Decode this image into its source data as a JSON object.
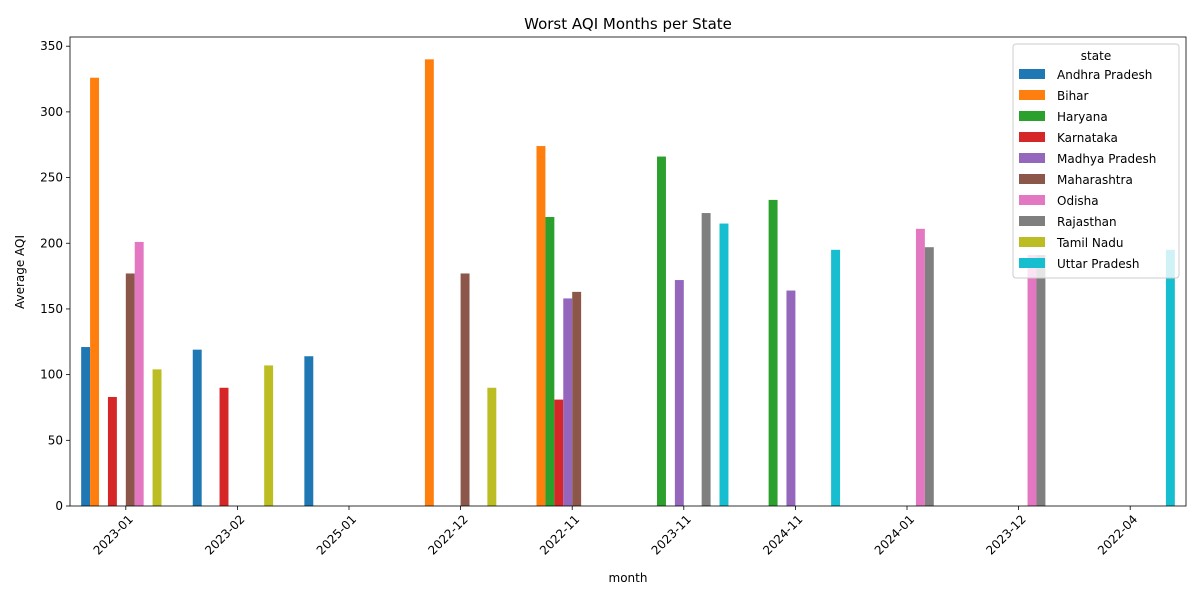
{
  "chart_data": {
    "type": "bar",
    "title": "Worst AQI Months per State",
    "xlabel": "month",
    "ylabel": "Average AQI",
    "ylim": [
      0,
      357
    ],
    "yticks": [
      0,
      50,
      100,
      150,
      200,
      250,
      300,
      350
    ],
    "grid": false,
    "legend_title": "state",
    "legend_placement": "top-right",
    "categories": [
      "2023-01",
      "2023-02",
      "2025-01",
      "2022-12",
      "2022-11",
      "2023-11",
      "2024-11",
      "2024-01",
      "2023-12",
      "2022-04"
    ],
    "series": [
      {
        "name": "Andhra Pradesh",
        "color": "#1f77b4",
        "values": [
          121,
          119,
          114,
          null,
          null,
          null,
          null,
          null,
          null,
          null
        ]
      },
      {
        "name": "Bihar",
        "color": "#ff7f0e",
        "values": [
          326,
          null,
          null,
          340,
          274,
          null,
          null,
          null,
          null,
          null
        ]
      },
      {
        "name": "Haryana",
        "color": "#2ca02c",
        "values": [
          null,
          null,
          null,
          null,
          220,
          266,
          233,
          null,
          null,
          null
        ]
      },
      {
        "name": "Karnataka",
        "color": "#d62728",
        "values": [
          83,
          90,
          null,
          null,
          81,
          null,
          null,
          null,
          null,
          null
        ]
      },
      {
        "name": "Madhya Pradesh",
        "color": "#9467bd",
        "values": [
          null,
          null,
          null,
          null,
          158,
          172,
          164,
          null,
          null,
          null
        ]
      },
      {
        "name": "Maharashtra",
        "color": "#8c564b",
        "values": [
          177,
          null,
          null,
          177,
          163,
          null,
          null,
          null,
          null,
          null
        ]
      },
      {
        "name": "Odisha",
        "color": "#e377c2",
        "values": [
          201,
          null,
          null,
          null,
          null,
          null,
          null,
          211,
          191,
          null
        ]
      },
      {
        "name": "Rajasthan",
        "color": "#7f7f7f",
        "values": [
          null,
          null,
          null,
          null,
          null,
          223,
          null,
          197,
          191,
          null
        ]
      },
      {
        "name": "Tamil Nadu",
        "color": "#bcbd22",
        "values": [
          104,
          107,
          null,
          90,
          null,
          null,
          null,
          null,
          null,
          null
        ]
      },
      {
        "name": "Uttar Pradesh",
        "color": "#17becf",
        "values": [
          null,
          null,
          null,
          null,
          null,
          215,
          195,
          null,
          null,
          195
        ]
      }
    ]
  }
}
